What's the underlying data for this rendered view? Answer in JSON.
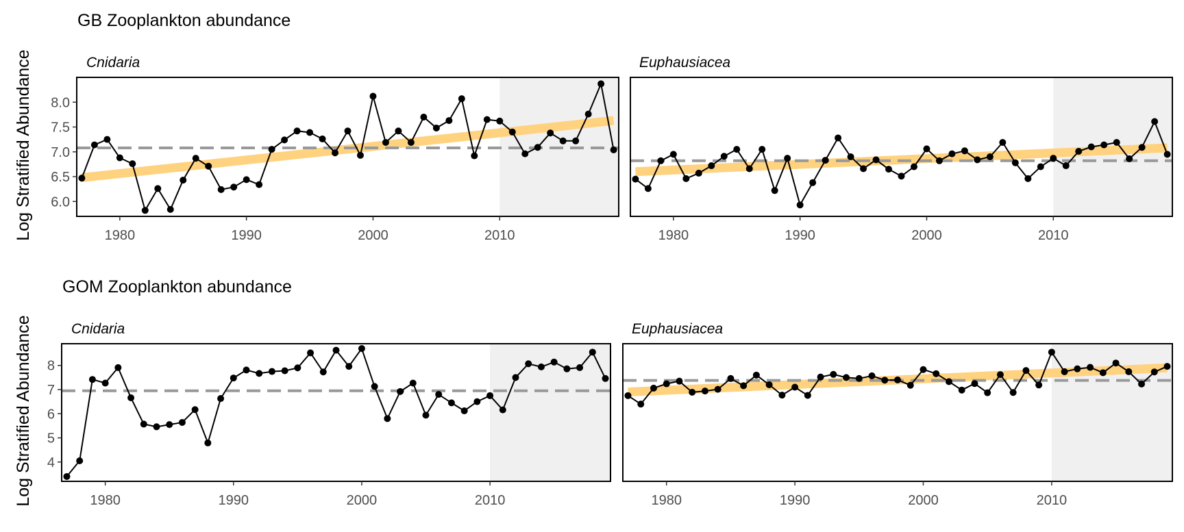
{
  "chart_data": [
    {
      "type": "line",
      "title": "GB Zooplankton abundance",
      "ylabel": "Log Stratified Abundance",
      "xlim": [
        1976.6,
        2019.4
      ],
      "x_ticks": [
        1980,
        1990,
        2000,
        2010
      ],
      "highlight_range": [
        2010,
        2019.4
      ],
      "grid": false,
      "facets": [
        {
          "label": "Cnidaria",
          "ylim": [
            5.7,
            8.5
          ],
          "y_ticks": [
            6.0,
            6.5,
            7.0,
            7.5,
            8.0
          ],
          "y_tick_labels": [
            "6.0",
            "6.5",
            "7.0",
            "7.5",
            "8.0"
          ],
          "mean": 7.08,
          "trend": [
            [
              1977,
              6.48
            ],
            [
              2019,
              7.63
            ]
          ],
          "x": [
            1977,
            1978,
            1979,
            1980,
            1981,
            1982,
            1983,
            1984,
            1985,
            1986,
            1987,
            1988,
            1989,
            1990,
            1991,
            1992,
            1993,
            1994,
            1995,
            1996,
            1997,
            1998,
            1999,
            2000,
            2001,
            2002,
            2003,
            2004,
            2005,
            2006,
            2007,
            2008,
            2009,
            2010,
            2011,
            2012,
            2013,
            2014,
            2015,
            2016,
            2017,
            2018,
            2019
          ],
          "y": [
            6.47,
            7.14,
            7.25,
            6.88,
            6.76,
            5.82,
            6.26,
            5.84,
            6.43,
            6.87,
            6.71,
            6.24,
            6.29,
            6.44,
            6.34,
            7.05,
            7.24,
            7.42,
            7.39,
            7.26,
            6.98,
            7.42,
            6.93,
            8.12,
            7.19,
            7.42,
            7.19,
            7.7,
            7.48,
            7.63,
            8.07,
            6.92,
            7.65,
            7.62,
            7.4,
            6.96,
            7.09,
            7.38,
            7.22,
            7.22,
            7.76,
            8.37,
            7.04
          ]
        },
        {
          "label": "Euphausiacea",
          "ylim": [
            5.7,
            8.5
          ],
          "y_ticks": [
            6.0,
            6.5,
            7.0,
            7.5,
            8.0
          ],
          "y_tick_labels": [
            "6.0",
            "6.5",
            "7.0",
            "7.5",
            "8.0"
          ],
          "mean": 6.82,
          "trend": [
            [
              1977,
              6.6
            ],
            [
              2019,
              7.08
            ]
          ],
          "x": [
            1977,
            1978,
            1979,
            1980,
            1981,
            1982,
            1983,
            1984,
            1985,
            1986,
            1987,
            1988,
            1989,
            1990,
            1991,
            1992,
            1993,
            1994,
            1995,
            1996,
            1997,
            1998,
            1999,
            2000,
            2001,
            2002,
            2003,
            2004,
            2005,
            2006,
            2007,
            2008,
            2009,
            2010,
            2011,
            2012,
            2013,
            2014,
            2015,
            2016,
            2017,
            2018,
            2019
          ],
          "y": [
            6.45,
            6.26,
            6.82,
            6.95,
            6.46,
            6.57,
            6.72,
            6.91,
            7.05,
            6.66,
            7.05,
            6.22,
            6.87,
            5.93,
            6.38,
            6.83,
            7.28,
            6.9,
            6.66,
            6.84,
            6.65,
            6.51,
            6.7,
            7.06,
            6.82,
            6.96,
            7.02,
            6.84,
            6.9,
            7.19,
            6.78,
            6.46,
            6.7,
            6.87,
            6.72,
            7.01,
            7.1,
            7.14,
            7.19,
            6.86,
            7.09,
            7.61,
            6.95
          ]
        }
      ]
    },
    {
      "type": "line",
      "title": "GOM Zooplankton abundance",
      "ylabel": "Log Stratified Abundance",
      "xlim": [
        1976.6,
        2019.4
      ],
      "x_ticks": [
        1980,
        1990,
        2000,
        2010
      ],
      "highlight_range": [
        2010,
        2019.4
      ],
      "grid": false,
      "facets": [
        {
          "label": "Cnidaria",
          "ylim": [
            3.2,
            8.9
          ],
          "y_ticks": [
            4,
            5,
            6,
            7,
            8
          ],
          "y_tick_labels": [
            "4",
            "5",
            "6",
            "7",
            "8"
          ],
          "mean": 6.95,
          "trend": null,
          "x": [
            1977,
            1978,
            1979,
            1980,
            1981,
            1982,
            1983,
            1984,
            1985,
            1986,
            1987,
            1988,
            1989,
            1990,
            1991,
            1992,
            1993,
            1994,
            1995,
            1996,
            1997,
            1998,
            1999,
            2000,
            2001,
            2002,
            2003,
            2004,
            2005,
            2006,
            2007,
            2008,
            2009,
            2010,
            2011,
            2012,
            2013,
            2014,
            2015,
            2016,
            2017,
            2018,
            2019
          ],
          "y": [
            3.4,
            4.05,
            7.42,
            7.27,
            7.91,
            6.66,
            5.57,
            5.46,
            5.55,
            5.64,
            6.17,
            4.79,
            6.63,
            7.48,
            7.81,
            7.67,
            7.75,
            7.78,
            7.9,
            8.52,
            7.73,
            8.63,
            7.96,
            8.7,
            7.13,
            5.8,
            6.92,
            7.27,
            5.94,
            6.8,
            6.45,
            6.12,
            6.5,
            6.75,
            6.16,
            7.5,
            8.07,
            7.94,
            8.14,
            7.86,
            7.91,
            8.55,
            7.46
          ]
        },
        {
          "label": "Euphausiacea",
          "ylim": [
            3.2,
            8.9
          ],
          "y_ticks": [
            4,
            5,
            6,
            7,
            8
          ],
          "y_tick_labels": [
            "4",
            "5",
            "6",
            "7",
            "8"
          ],
          "mean": 7.38,
          "trend": [
            [
              1977,
              6.9
            ],
            [
              2019,
              7.9
            ]
          ],
          "x": [
            1977,
            1978,
            1979,
            1980,
            1981,
            1982,
            1983,
            1984,
            1985,
            1986,
            1987,
            1988,
            1989,
            1990,
            1991,
            1992,
            1993,
            1994,
            1995,
            1996,
            1997,
            1998,
            1999,
            2000,
            2001,
            2002,
            2003,
            2004,
            2005,
            2006,
            2007,
            2008,
            2009,
            2010,
            2011,
            2012,
            2013,
            2014,
            2015,
            2016,
            2017,
            2018,
            2019
          ],
          "y": [
            6.75,
            6.4,
            7.06,
            7.24,
            7.35,
            6.89,
            6.94,
            7.01,
            7.46,
            7.16,
            7.6,
            7.2,
            6.77,
            7.1,
            6.76,
            7.52,
            7.63,
            7.5,
            7.46,
            7.57,
            7.39,
            7.4,
            7.18,
            7.83,
            7.66,
            7.33,
            6.98,
            7.25,
            6.87,
            7.62,
            6.88,
            7.79,
            7.19,
            8.55,
            7.74,
            7.86,
            7.92,
            7.7,
            8.1,
            7.74,
            7.23,
            7.73,
            7.96
          ]
        }
      ]
    }
  ],
  "colors": {
    "series": "#000000",
    "trend": "#FFD27F",
    "mean": "#999999",
    "highlight": "#f0f0f0",
    "panel_border": "#000000",
    "tick_text": "#4d4d4d"
  }
}
